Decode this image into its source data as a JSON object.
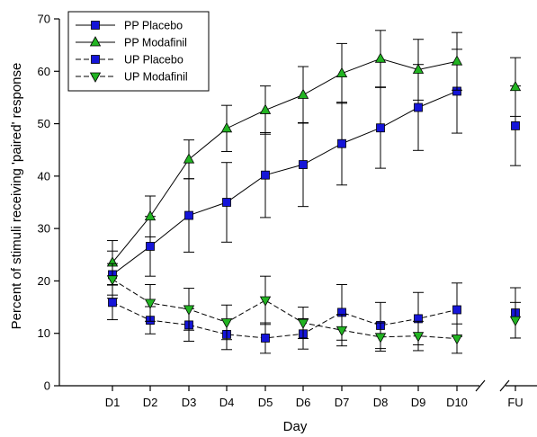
{
  "chart_data": {
    "type": "line",
    "title": "",
    "xlabel": "Day",
    "ylabel": "Percent of stimuli receiving 'paired' response",
    "ylim": [
      0,
      70
    ],
    "yticks": [
      0,
      10,
      20,
      30,
      40,
      50,
      60,
      70
    ],
    "categories": [
      "D1",
      "D2",
      "D3",
      "D4",
      "D5",
      "D6",
      "D7",
      "D8",
      "D9",
      "D10",
      "FU"
    ],
    "axis_break": "between D10 and FU",
    "grid": false,
    "legend": "top-left",
    "series": [
      {
        "name": "PP Placebo",
        "marker": "square",
        "dashed": false,
        "color": "#1515d8",
        "values": [
          21.2,
          26.6,
          32.5,
          35.0,
          40.2,
          42.2,
          46.2,
          49.2,
          53.1,
          56.2,
          49.6
        ],
        "errors": [
          4.5,
          5.7,
          7.0,
          7.6,
          8.1,
          8.0,
          7.9,
          7.7,
          8.2,
          8.0,
          7.6
        ]
      },
      {
        "name": "PP Modafinil",
        "marker": "triangle-up",
        "dashed": false,
        "color": "#22b422",
        "values": [
          23.5,
          32.3,
          43.2,
          49.1,
          52.6,
          55.5,
          59.6,
          62.4,
          60.3,
          61.9,
          57.0
        ],
        "errors": [
          4.2,
          3.9,
          3.7,
          4.4,
          4.6,
          5.4,
          5.7,
          5.4,
          5.8,
          5.5,
          5.6
        ]
      },
      {
        "name": "UP Placebo",
        "marker": "square",
        "dashed": true,
        "color": "#1515d8",
        "values": [
          15.9,
          12.5,
          11.6,
          9.8,
          9.1,
          9.9,
          14.0,
          11.5,
          12.8,
          14.5,
          13.9
        ],
        "errors": [
          3.3,
          2.6,
          3.1,
          2.9,
          2.9,
          2.9,
          5.3,
          4.4,
          5.0,
          5.1,
          4.8
        ]
      },
      {
        "name": "UP Modafinil",
        "marker": "triangle-down",
        "dashed": true,
        "color": "#22b422",
        "values": [
          20.3,
          15.8,
          14.6,
          12.1,
          16.3,
          12.0,
          10.6,
          9.3,
          9.5,
          9.0,
          12.5
        ],
        "errors": [
          3.0,
          3.5,
          4.0,
          3.3,
          4.6,
          3.0,
          3.0,
          2.7,
          2.8,
          2.8,
          3.4
        ]
      }
    ]
  }
}
